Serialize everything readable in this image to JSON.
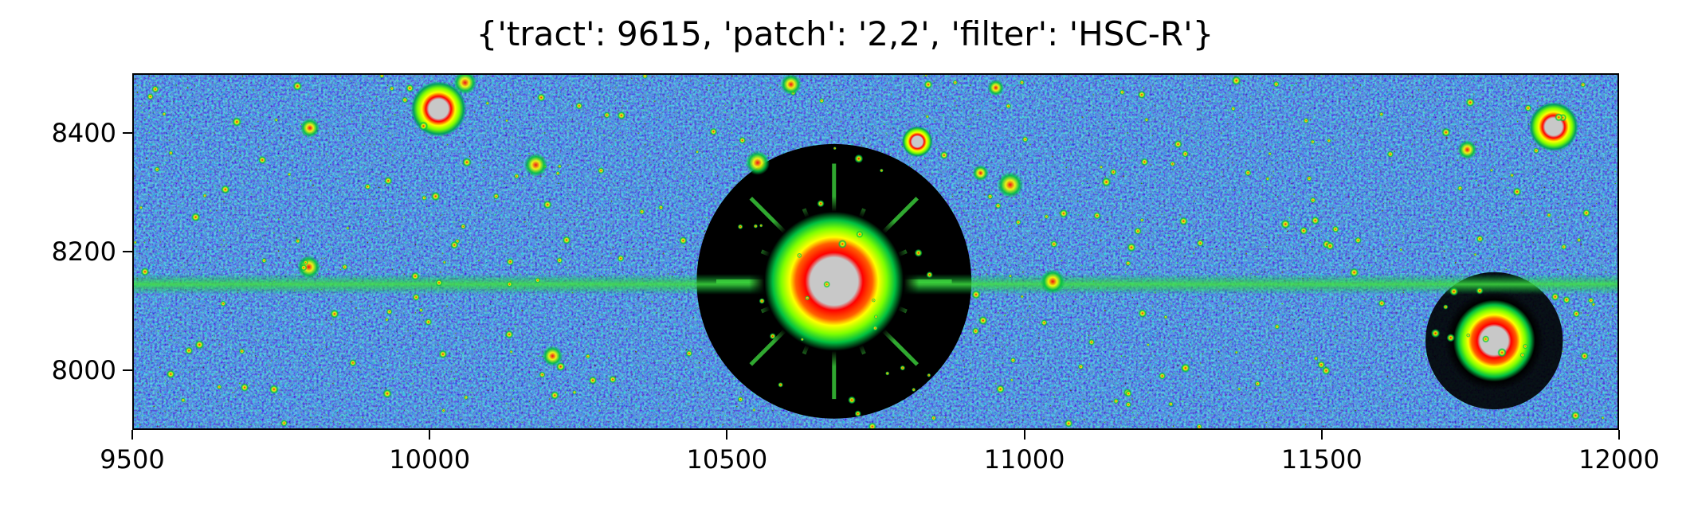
{
  "chart_data": {
    "type": "heatmap",
    "title": "{'tract': 9615, 'patch': '2,2', 'filter': 'HSC-R'}",
    "xlabel": "",
    "ylabel": "",
    "xlim": [
      9500,
      12000
    ],
    "ylim": [
      7900,
      8500
    ],
    "xticks": [
      9500,
      10000,
      10500,
      11000,
      11500,
      12000
    ],
    "xtick_labels": [
      "9500",
      "10000",
      "10500",
      "11000",
      "11500",
      "12000"
    ],
    "yticks": [
      8000,
      8200,
      8400
    ],
    "ytick_labels": [
      "8000",
      "8200",
      "8400"
    ],
    "colormap": [
      "#000000",
      "#1a1a8c",
      "#1f5fd0",
      "#10a0a0",
      "#00c040",
      "#7fff00",
      "#ffff00",
      "#ff8000",
      "#ff0000",
      "#c8c8c8"
    ],
    "saturated_sources": [
      {
        "x": 10680,
        "y": 8150,
        "r": 55
      },
      {
        "x": 11790,
        "y": 8050,
        "r": 35
      },
      {
        "x": 10015,
        "y": 8440,
        "r": 18
      },
      {
        "x": 11890,
        "y": 8410,
        "r": 16
      },
      {
        "x": 10820,
        "y": 8385,
        "r": 10
      }
    ],
    "grid": false
  }
}
